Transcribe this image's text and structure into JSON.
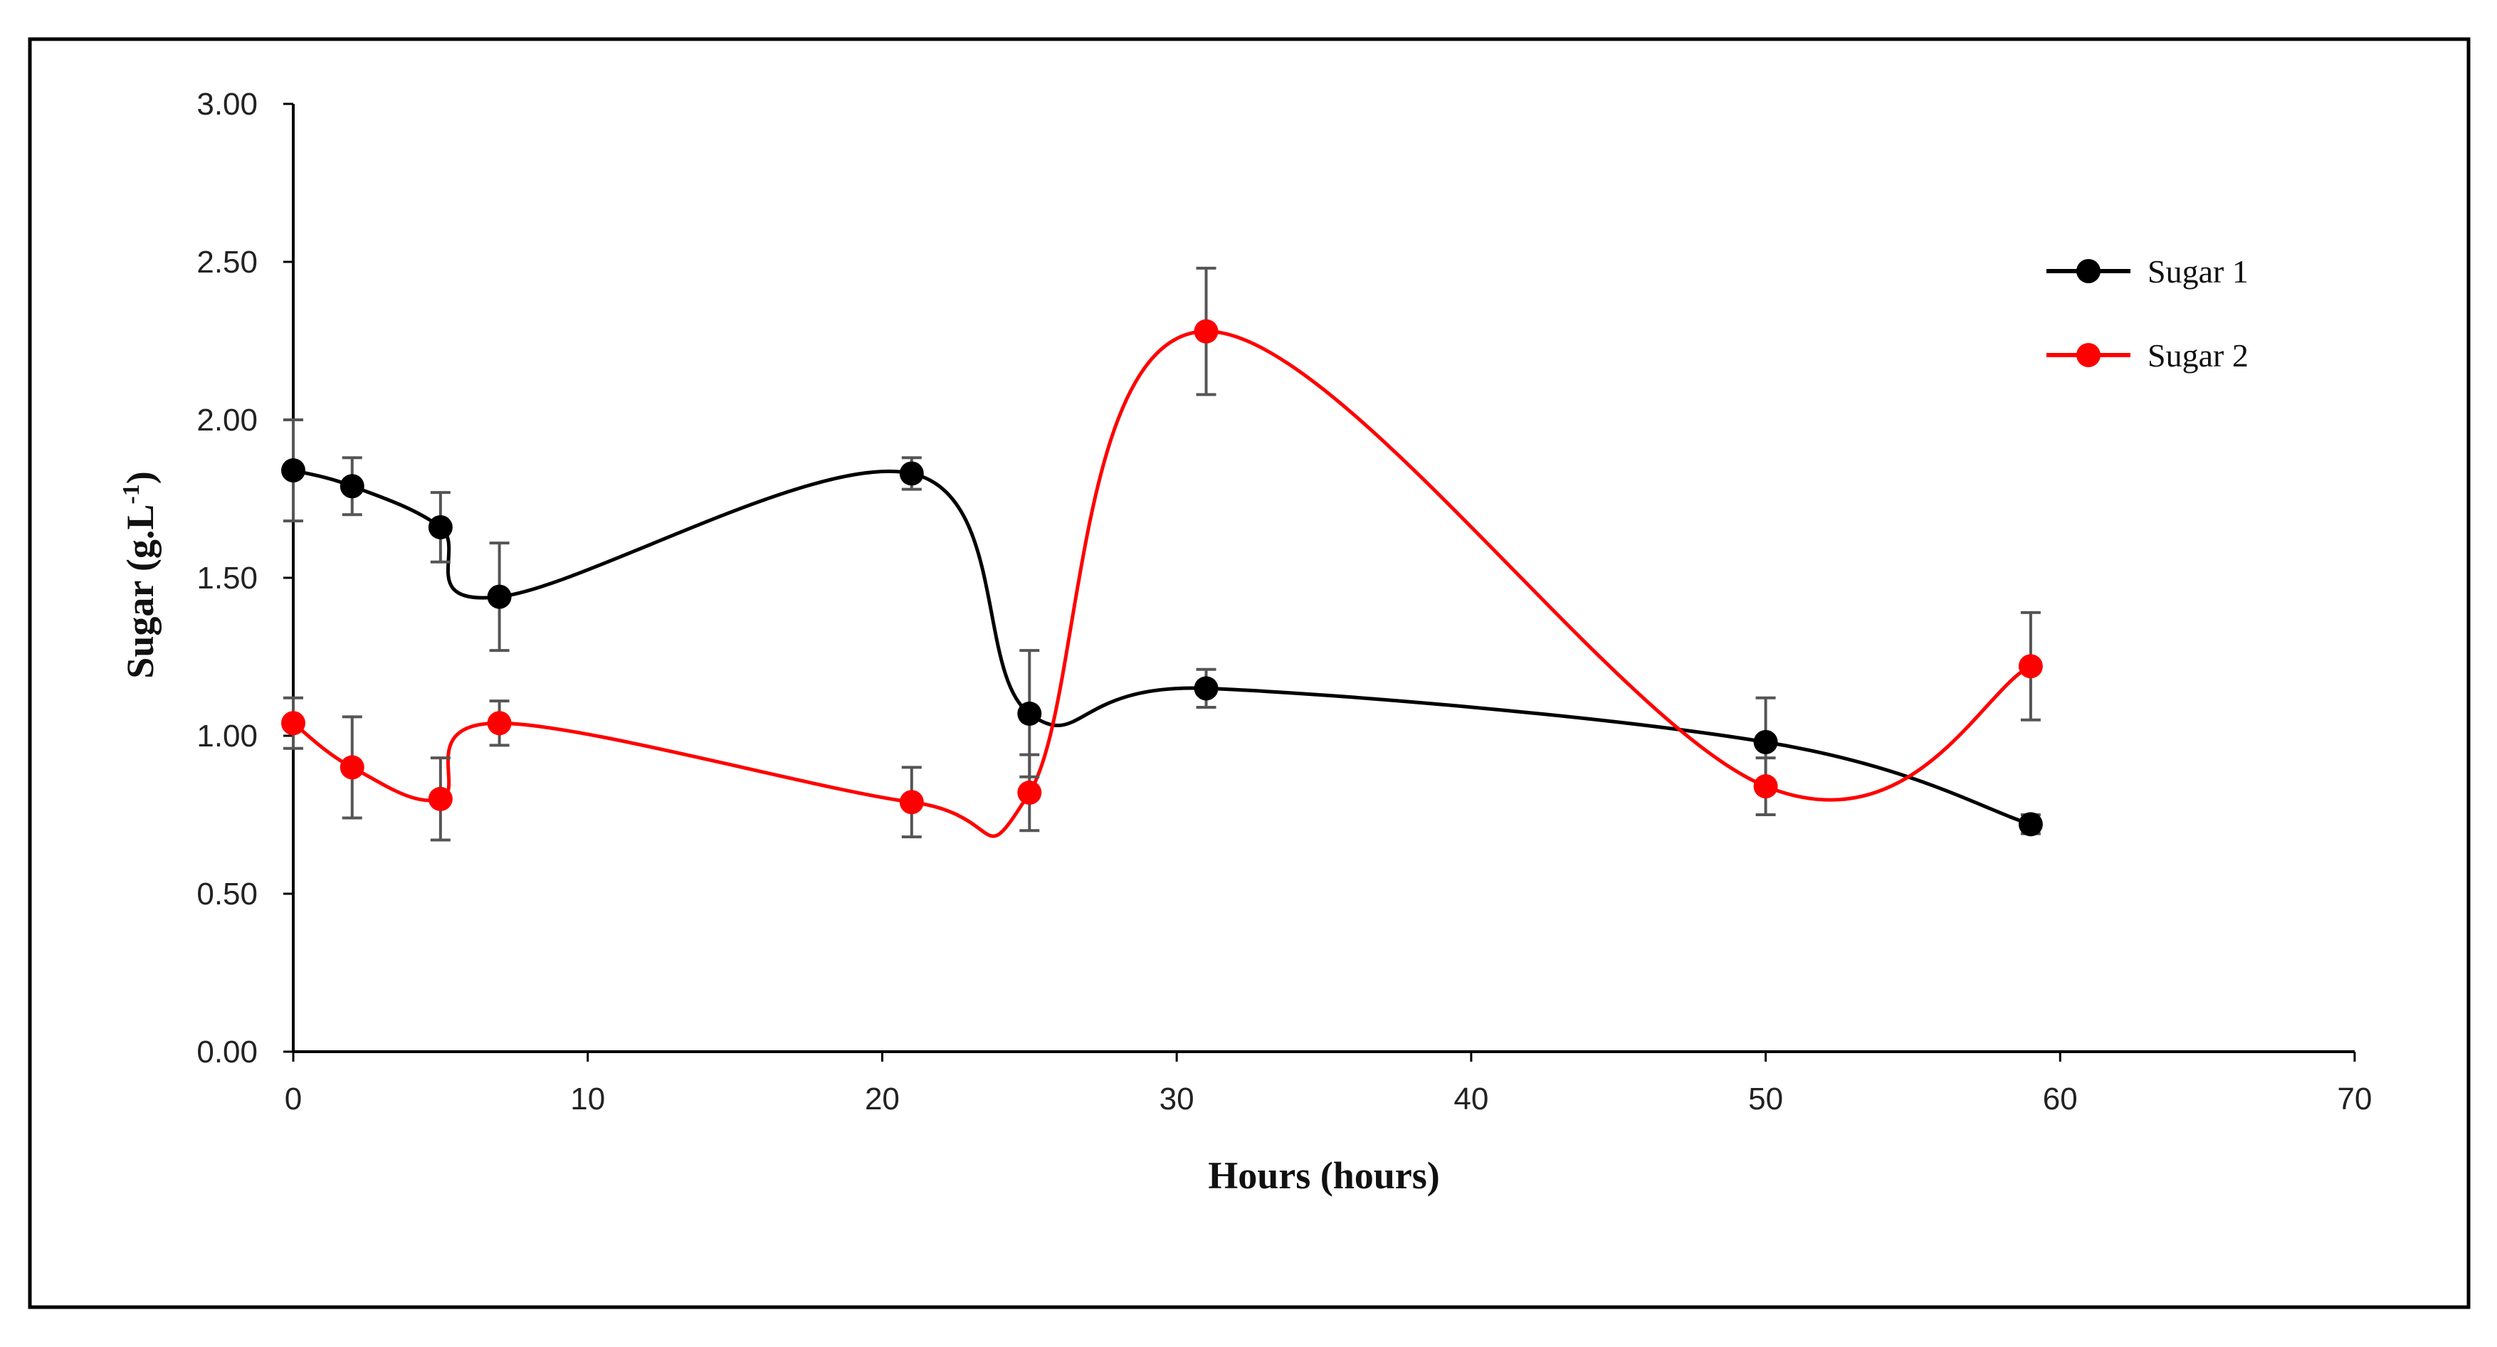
{
  "chart_data": {
    "type": "line",
    "title": "",
    "xlabel": "Hours (hours)",
    "ylabel": "Sugar (g.L",
    "ylabel_sup": "-1",
    "ylabel_close": ")",
    "xlim": [
      0,
      70
    ],
    "ylim": [
      0,
      3
    ],
    "x_ticks": [
      0,
      10,
      20,
      30,
      40,
      50,
      60,
      70
    ],
    "x_tick_labels": [
      "0",
      "10",
      "20",
      "30",
      "40",
      "50",
      "60",
      "70"
    ],
    "y_ticks": [
      0,
      0.5,
      1,
      1.5,
      2,
      2.5,
      3
    ],
    "y_tick_labels": [
      "0.00",
      "0.50",
      "1.00",
      "1.50",
      "2.00",
      "2.50",
      "3.00"
    ],
    "grid": false,
    "legend_position": "top-right",
    "x": [
      0,
      2,
      5,
      7,
      21,
      25,
      31,
      50,
      59
    ],
    "series": [
      {
        "name": "Sugar 1",
        "color": "#000000",
        "values": [
          1.84,
          1.79,
          1.66,
          1.44,
          1.83,
          1.07,
          1.15,
          0.98,
          0.72
        ],
        "errors": [
          0.16,
          0.09,
          0.11,
          0.17,
          0.05,
          0.2,
          0.06,
          0.14,
          0.03
        ]
      },
      {
        "name": "Sugar 2",
        "color": "#ff0000",
        "values": [
          1.04,
          0.9,
          0.8,
          1.04,
          0.79,
          0.82,
          2.28,
          0.84,
          1.22
        ],
        "errors": [
          0.08,
          0.16,
          0.13,
          0.07,
          0.11,
          0.12,
          0.2,
          0.09,
          0.17
        ]
      }
    ]
  }
}
